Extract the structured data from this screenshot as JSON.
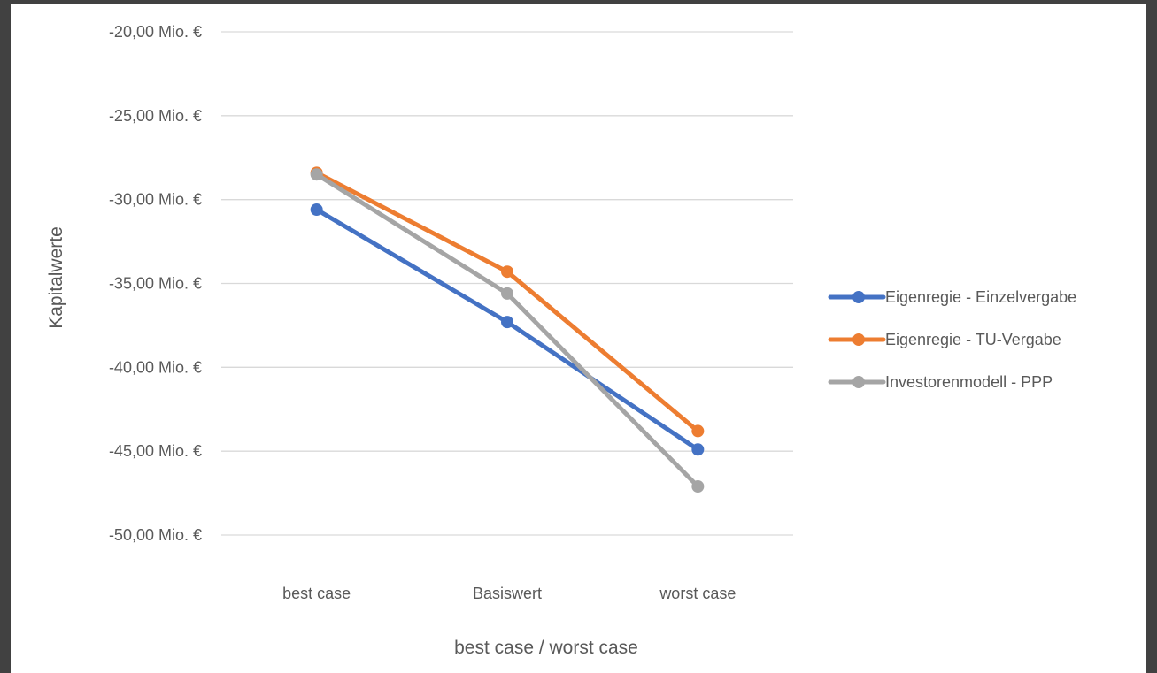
{
  "chart_data": {
    "type": "line",
    "title": "",
    "xlabel": "best case / worst case",
    "ylabel": "Kapitalwerte",
    "categories": [
      "best case",
      "Basiswert",
      "worst case"
    ],
    "ylim": [
      -50,
      -20
    ],
    "yticks": [
      -20,
      -25,
      -30,
      -35,
      -40,
      -45,
      -50
    ],
    "ytick_labels": [
      "-20,00 Mio. €",
      "-25,00 Mio. €",
      "-30,00 Mio. €",
      "-35,00 Mio. €",
      "-40,00 Mio. €",
      "-45,00 Mio. €",
      "-50,00 Mio. €"
    ],
    "grid": true,
    "legend_position": "right",
    "series": [
      {
        "name": "Eigenregie - Einzelvergabe",
        "color": "#4472C4",
        "values": [
          -30.6,
          -37.3,
          -44.9
        ]
      },
      {
        "name": "Eigenregie - TU-Vergabe",
        "color": "#ED7D31",
        "values": [
          -28.4,
          -34.3,
          -43.8
        ]
      },
      {
        "name": "Investorenmodell - PPP",
        "color": "#A5A5A5",
        "values": [
          -28.5,
          -35.6,
          -47.1
        ]
      }
    ]
  }
}
